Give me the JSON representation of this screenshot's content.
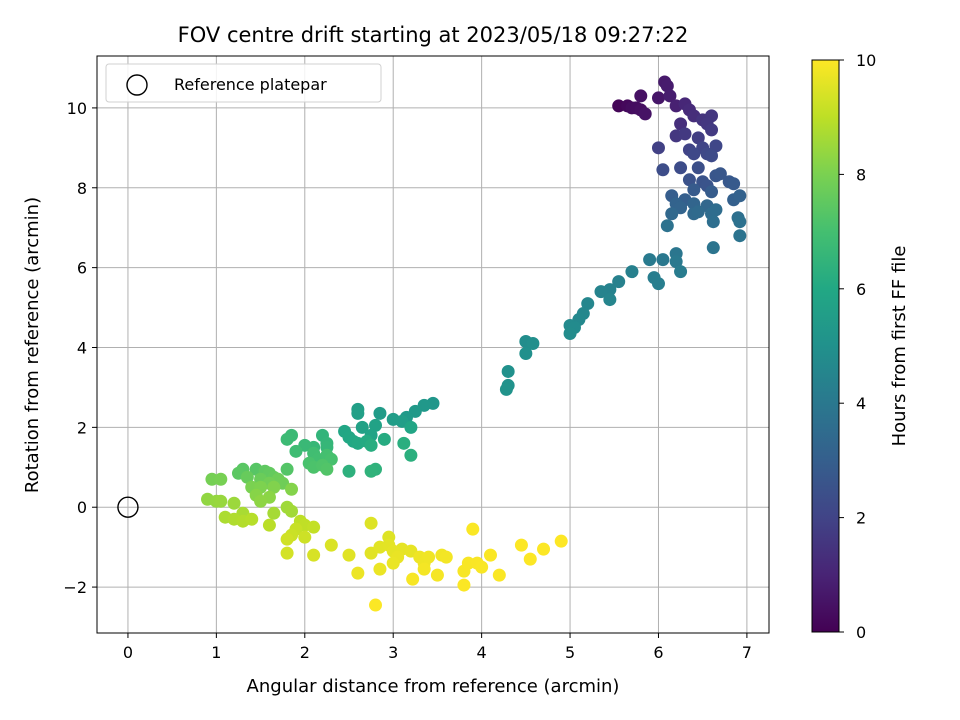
{
  "chart_data": {
    "type": "scatter",
    "title": "FOV centre drift starting at 2023/05/18 09:27:22",
    "xlabel": "Angular distance from reference (arcmin)",
    "ylabel": "Rotation from reference (arcmin)",
    "xlim": [
      -0.35,
      7.25
    ],
    "ylim": [
      -3.15,
      11.3
    ],
    "xticks": [
      0,
      1,
      2,
      3,
      4,
      5,
      6,
      7
    ],
    "yticks": [
      -2,
      0,
      2,
      4,
      6,
      8,
      10
    ],
    "xtick_labels": [
      "0",
      "1",
      "2",
      "3",
      "4",
      "5",
      "6",
      "7"
    ],
    "ytick_labels": [
      "−2",
      "0",
      "2",
      "4",
      "6",
      "8",
      "10"
    ],
    "grid": true,
    "legend_position": "top-left",
    "legend": [
      {
        "label": "Reference platepar",
        "marker": "open-circle"
      }
    ],
    "reference_point": {
      "x": 0,
      "y": 0
    },
    "colorbar": {
      "label": "Hours from first FF file",
      "colormap": "viridis",
      "range": [
        0,
        10
      ],
      "ticks": [
        0,
        2,
        4,
        6,
        8,
        10
      ],
      "tick_labels": [
        "0",
        "2",
        "4",
        "6",
        "8",
        "10"
      ]
    },
    "points": [
      {
        "x": 5.55,
        "y": 10.05,
        "c": 0.1
      },
      {
        "x": 5.65,
        "y": 10.05,
        "c": 0.2
      },
      {
        "x": 5.7,
        "y": 10.0,
        "c": 0.3
      },
      {
        "x": 5.75,
        "y": 10.0,
        "c": 0.35
      },
      {
        "x": 5.8,
        "y": 9.95,
        "c": 0.4
      },
      {
        "x": 5.85,
        "y": 9.85,
        "c": 0.5
      },
      {
        "x": 5.8,
        "y": 10.3,
        "c": 0.45
      },
      {
        "x": 6.0,
        "y": 10.25,
        "c": 0.6
      },
      {
        "x": 6.07,
        "y": 10.65,
        "c": 0.7
      },
      {
        "x": 6.1,
        "y": 10.55,
        "c": 0.75
      },
      {
        "x": 6.13,
        "y": 10.3,
        "c": 0.8
      },
      {
        "x": 6.2,
        "y": 10.05,
        "c": 0.9
      },
      {
        "x": 6.3,
        "y": 10.1,
        "c": 1.1
      },
      {
        "x": 6.35,
        "y": 9.95,
        "c": 1.2
      },
      {
        "x": 6.4,
        "y": 9.8,
        "c": 1.3
      },
      {
        "x": 6.25,
        "y": 9.6,
        "c": 1.35
      },
      {
        "x": 6.5,
        "y": 9.7,
        "c": 1.5
      },
      {
        "x": 6.6,
        "y": 9.8,
        "c": 1.55
      },
      {
        "x": 6.55,
        "y": 9.6,
        "c": 1.6
      },
      {
        "x": 6.6,
        "y": 9.45,
        "c": 1.7
      },
      {
        "x": 6.2,
        "y": 9.3,
        "c": 1.6
      },
      {
        "x": 6.3,
        "y": 9.35,
        "c": 1.65
      },
      {
        "x": 6.45,
        "y": 9.25,
        "c": 1.8
      },
      {
        "x": 6.0,
        "y": 9.0,
        "c": 1.9
      },
      {
        "x": 6.35,
        "y": 8.95,
        "c": 2.0
      },
      {
        "x": 6.5,
        "y": 9.0,
        "c": 2.05
      },
      {
        "x": 6.65,
        "y": 9.05,
        "c": 2.1
      },
      {
        "x": 6.4,
        "y": 8.85,
        "c": 2.15
      },
      {
        "x": 6.55,
        "y": 8.85,
        "c": 2.2
      },
      {
        "x": 6.6,
        "y": 8.8,
        "c": 2.25
      },
      {
        "x": 6.25,
        "y": 8.5,
        "c": 2.3
      },
      {
        "x": 6.05,
        "y": 8.45,
        "c": 2.35
      },
      {
        "x": 6.45,
        "y": 8.5,
        "c": 2.4
      },
      {
        "x": 6.35,
        "y": 8.2,
        "c": 2.5
      },
      {
        "x": 6.5,
        "y": 8.15,
        "c": 2.55
      },
      {
        "x": 6.55,
        "y": 8.05,
        "c": 2.6
      },
      {
        "x": 6.65,
        "y": 8.3,
        "c": 2.65
      },
      {
        "x": 6.7,
        "y": 8.35,
        "c": 2.7
      },
      {
        "x": 6.8,
        "y": 8.15,
        "c": 2.75
      },
      {
        "x": 6.85,
        "y": 8.1,
        "c": 2.8
      },
      {
        "x": 6.4,
        "y": 7.95,
        "c": 2.85
      },
      {
        "x": 6.6,
        "y": 7.9,
        "c": 2.9
      },
      {
        "x": 6.15,
        "y": 7.8,
        "c": 2.95
      },
      {
        "x": 6.3,
        "y": 7.7,
        "c": 3.0
      },
      {
        "x": 6.85,
        "y": 7.7,
        "c": 3.05
      },
      {
        "x": 6.92,
        "y": 7.8,
        "c": 3.1
      },
      {
        "x": 6.2,
        "y": 7.6,
        "c": 3.15
      },
      {
        "x": 6.25,
        "y": 7.5,
        "c": 3.2
      },
      {
        "x": 6.4,
        "y": 7.6,
        "c": 3.25
      },
      {
        "x": 6.55,
        "y": 7.55,
        "c": 3.3
      },
      {
        "x": 6.15,
        "y": 7.35,
        "c": 3.35
      },
      {
        "x": 6.4,
        "y": 7.35,
        "c": 3.4
      },
      {
        "x": 6.45,
        "y": 7.4,
        "c": 3.45
      },
      {
        "x": 6.6,
        "y": 7.35,
        "c": 3.5
      },
      {
        "x": 6.65,
        "y": 7.45,
        "c": 3.55
      },
      {
        "x": 6.62,
        "y": 7.15,
        "c": 3.6
      },
      {
        "x": 6.9,
        "y": 7.25,
        "c": 3.65
      },
      {
        "x": 6.92,
        "y": 7.15,
        "c": 3.7
      },
      {
        "x": 6.1,
        "y": 7.05,
        "c": 3.75
      },
      {
        "x": 6.92,
        "y": 6.8,
        "c": 3.8
      },
      {
        "x": 6.62,
        "y": 6.5,
        "c": 3.85
      },
      {
        "x": 6.2,
        "y": 6.35,
        "c": 3.9
      },
      {
        "x": 6.05,
        "y": 6.2,
        "c": 4.0
      },
      {
        "x": 6.2,
        "y": 6.15,
        "c": 4.05
      },
      {
        "x": 5.9,
        "y": 6.2,
        "c": 4.1
      },
      {
        "x": 6.25,
        "y": 5.9,
        "c": 4.15
      },
      {
        "x": 5.95,
        "y": 5.75,
        "c": 4.2
      },
      {
        "x": 6.0,
        "y": 5.6,
        "c": 4.25
      },
      {
        "x": 5.7,
        "y": 5.9,
        "c": 4.3
      },
      {
        "x": 5.55,
        "y": 5.65,
        "c": 4.35
      },
      {
        "x": 5.45,
        "y": 5.45,
        "c": 4.4
      },
      {
        "x": 5.35,
        "y": 5.4,
        "c": 4.45
      },
      {
        "x": 5.45,
        "y": 5.2,
        "c": 4.5
      },
      {
        "x": 5.2,
        "y": 5.1,
        "c": 4.55
      },
      {
        "x": 5.15,
        "y": 4.85,
        "c": 4.6
      },
      {
        "x": 5.1,
        "y": 4.7,
        "c": 4.65
      },
      {
        "x": 5.0,
        "y": 4.55,
        "c": 4.7
      },
      {
        "x": 5.05,
        "y": 4.5,
        "c": 4.75
      },
      {
        "x": 5.0,
        "y": 4.35,
        "c": 4.8
      },
      {
        "x": 4.5,
        "y": 4.15,
        "c": 4.85
      },
      {
        "x": 4.58,
        "y": 4.1,
        "c": 4.9
      },
      {
        "x": 4.5,
        "y": 3.85,
        "c": 4.95
      },
      {
        "x": 4.3,
        "y": 3.4,
        "c": 5.0
      },
      {
        "x": 4.3,
        "y": 3.05,
        "c": 5.05
      },
      {
        "x": 4.28,
        "y": 2.95,
        "c": 5.1
      },
      {
        "x": 3.45,
        "y": 2.6,
        "c": 5.2
      },
      {
        "x": 3.35,
        "y": 2.55,
        "c": 5.3
      },
      {
        "x": 3.25,
        "y": 2.4,
        "c": 5.35
      },
      {
        "x": 3.15,
        "y": 2.25,
        "c": 5.4
      },
      {
        "x": 2.85,
        "y": 2.35,
        "c": 5.45
      },
      {
        "x": 3.0,
        "y": 2.2,
        "c": 5.5
      },
      {
        "x": 3.1,
        "y": 2.15,
        "c": 5.55
      },
      {
        "x": 2.6,
        "y": 2.45,
        "c": 5.6
      },
      {
        "x": 2.6,
        "y": 2.35,
        "c": 5.65
      },
      {
        "x": 2.65,
        "y": 2.0,
        "c": 5.7
      },
      {
        "x": 2.8,
        "y": 2.05,
        "c": 5.75
      },
      {
        "x": 2.75,
        "y": 1.8,
        "c": 5.8
      },
      {
        "x": 3.2,
        "y": 2.0,
        "c": 5.85
      },
      {
        "x": 2.45,
        "y": 1.9,
        "c": 5.9
      },
      {
        "x": 2.5,
        "y": 1.75,
        "c": 5.95
      },
      {
        "x": 2.55,
        "y": 1.65,
        "c": 6.0
      },
      {
        "x": 2.6,
        "y": 1.6,
        "c": 6.05
      },
      {
        "x": 2.7,
        "y": 1.65,
        "c": 6.1
      },
      {
        "x": 2.9,
        "y": 1.7,
        "c": 6.15
      },
      {
        "x": 2.75,
        "y": 1.55,
        "c": 6.2
      },
      {
        "x": 3.12,
        "y": 1.6,
        "c": 6.25
      },
      {
        "x": 3.2,
        "y": 1.3,
        "c": 6.3
      },
      {
        "x": 2.5,
        "y": 0.9,
        "c": 6.35
      },
      {
        "x": 2.8,
        "y": 0.95,
        "c": 6.4
      },
      {
        "x": 2.75,
        "y": 0.9,
        "c": 6.45
      },
      {
        "x": 2.2,
        "y": 1.8,
        "c": 6.5
      },
      {
        "x": 2.25,
        "y": 1.6,
        "c": 6.55
      },
      {
        "x": 2.25,
        "y": 1.5,
        "c": 6.6
      },
      {
        "x": 2.1,
        "y": 1.5,
        "c": 6.65
      },
      {
        "x": 2.0,
        "y": 1.55,
        "c": 6.7
      },
      {
        "x": 1.85,
        "y": 1.8,
        "c": 6.75
      },
      {
        "x": 1.8,
        "y": 1.7,
        "c": 6.8
      },
      {
        "x": 1.9,
        "y": 1.4,
        "c": 6.85
      },
      {
        "x": 2.1,
        "y": 1.35,
        "c": 6.9
      },
      {
        "x": 2.15,
        "y": 1.2,
        "c": 6.95
      },
      {
        "x": 2.25,
        "y": 1.3,
        "c": 7.0
      },
      {
        "x": 2.3,
        "y": 1.2,
        "c": 7.05
      },
      {
        "x": 2.05,
        "y": 1.1,
        "c": 7.1
      },
      {
        "x": 2.1,
        "y": 1.0,
        "c": 7.15
      },
      {
        "x": 2.2,
        "y": 1.05,
        "c": 7.2
      },
      {
        "x": 2.25,
        "y": 0.95,
        "c": 7.25
      },
      {
        "x": 1.8,
        "y": 0.95,
        "c": 7.3
      },
      {
        "x": 1.45,
        "y": 0.95,
        "c": 7.35
      },
      {
        "x": 1.3,
        "y": 0.95,
        "c": 7.4
      },
      {
        "x": 1.25,
        "y": 0.85,
        "c": 7.45
      },
      {
        "x": 1.55,
        "y": 0.9,
        "c": 7.5
      },
      {
        "x": 1.6,
        "y": 0.85,
        "c": 7.55
      },
      {
        "x": 1.65,
        "y": 0.75,
        "c": 7.6
      },
      {
        "x": 1.35,
        "y": 0.75,
        "c": 7.65
      },
      {
        "x": 1.5,
        "y": 0.7,
        "c": 7.7
      },
      {
        "x": 1.7,
        "y": 0.7,
        "c": 7.75
      },
      {
        "x": 1.75,
        "y": 0.6,
        "c": 7.8
      },
      {
        "x": 1.6,
        "y": 0.6,
        "c": 7.85
      },
      {
        "x": 0.95,
        "y": 0.7,
        "c": 7.9
      },
      {
        "x": 1.05,
        "y": 0.7,
        "c": 7.95
      },
      {
        "x": 1.4,
        "y": 0.5,
        "c": 8.0
      },
      {
        "x": 1.5,
        "y": 0.5,
        "c": 8.05
      },
      {
        "x": 1.65,
        "y": 0.5,
        "c": 8.1
      },
      {
        "x": 1.85,
        "y": 0.45,
        "c": 8.15
      },
      {
        "x": 1.45,
        "y": 0.3,
        "c": 8.2
      },
      {
        "x": 1.6,
        "y": 0.25,
        "c": 8.25
      },
      {
        "x": 1.5,
        "y": 0.15,
        "c": 8.3
      },
      {
        "x": 0.9,
        "y": 0.2,
        "c": 8.35
      },
      {
        "x": 1.0,
        "y": 0.15,
        "c": 8.4
      },
      {
        "x": 1.05,
        "y": 0.15,
        "c": 8.45
      },
      {
        "x": 1.2,
        "y": 0.1,
        "c": 8.5
      },
      {
        "x": 1.8,
        "y": 0.0,
        "c": 8.55
      },
      {
        "x": 1.85,
        "y": -0.1,
        "c": 8.6
      },
      {
        "x": 1.65,
        "y": -0.15,
        "c": 8.65
      },
      {
        "x": 1.3,
        "y": -0.15,
        "c": 8.7
      },
      {
        "x": 1.1,
        "y": -0.25,
        "c": 8.75
      },
      {
        "x": 1.2,
        "y": -0.3,
        "c": 8.8
      },
      {
        "x": 1.3,
        "y": -0.35,
        "c": 8.85
      },
      {
        "x": 1.4,
        "y": -0.3,
        "c": 8.9
      },
      {
        "x": 1.6,
        "y": -0.45,
        "c": 8.95
      },
      {
        "x": 1.95,
        "y": -0.35,
        "c": 9.0
      },
      {
        "x": 2.0,
        "y": -0.45,
        "c": 9.05
      },
      {
        "x": 2.1,
        "y": -0.5,
        "c": 9.1
      },
      {
        "x": 1.9,
        "y": -0.55,
        "c": 9.15
      },
      {
        "x": 1.85,
        "y": -0.7,
        "c": 9.2
      },
      {
        "x": 2.0,
        "y": -0.75,
        "c": 9.25
      },
      {
        "x": 1.8,
        "y": -0.8,
        "c": 9.3
      },
      {
        "x": 1.8,
        "y": -1.15,
        "c": 9.35
      },
      {
        "x": 2.1,
        "y": -1.2,
        "c": 9.4
      },
      {
        "x": 2.3,
        "y": -0.95,
        "c": 9.45
      },
      {
        "x": 2.75,
        "y": -0.4,
        "c": 9.5
      },
      {
        "x": 2.95,
        "y": -0.75,
        "c": 9.52
      },
      {
        "x": 2.5,
        "y": -1.2,
        "c": 9.54
      },
      {
        "x": 2.75,
        "y": -1.15,
        "c": 9.56
      },
      {
        "x": 2.85,
        "y": -1.0,
        "c": 9.58
      },
      {
        "x": 2.95,
        "y": -0.95,
        "c": 9.6
      },
      {
        "x": 3.0,
        "y": -1.1,
        "c": 9.62
      },
      {
        "x": 3.1,
        "y": -1.05,
        "c": 9.64
      },
      {
        "x": 3.2,
        "y": -1.1,
        "c": 9.66
      },
      {
        "x": 3.05,
        "y": -1.25,
        "c": 9.68
      },
      {
        "x": 3.0,
        "y": -1.4,
        "c": 9.7
      },
      {
        "x": 2.85,
        "y": -1.55,
        "c": 9.72
      },
      {
        "x": 2.6,
        "y": -1.65,
        "c": 9.74
      },
      {
        "x": 3.3,
        "y": -1.25,
        "c": 9.76
      },
      {
        "x": 3.35,
        "y": -1.4,
        "c": 9.78
      },
      {
        "x": 3.4,
        "y": -1.25,
        "c": 9.8
      },
      {
        "x": 3.55,
        "y": -1.2,
        "c": 9.82
      },
      {
        "x": 3.6,
        "y": -1.25,
        "c": 9.84
      },
      {
        "x": 3.35,
        "y": -1.55,
        "c": 9.86
      },
      {
        "x": 3.5,
        "y": -1.7,
        "c": 9.88
      },
      {
        "x": 3.22,
        "y": -1.8,
        "c": 9.9
      },
      {
        "x": 3.8,
        "y": -1.6,
        "c": 9.91
      },
      {
        "x": 3.85,
        "y": -1.4,
        "c": 9.92
      },
      {
        "x": 3.95,
        "y": -1.4,
        "c": 9.93
      },
      {
        "x": 4.0,
        "y": -1.5,
        "c": 9.94
      },
      {
        "x": 4.1,
        "y": -1.2,
        "c": 9.95
      },
      {
        "x": 3.9,
        "y": -0.55,
        "c": 9.96
      },
      {
        "x": 4.2,
        "y": -1.7,
        "c": 9.96
      },
      {
        "x": 3.8,
        "y": -1.95,
        "c": 9.97
      },
      {
        "x": 2.8,
        "y": -2.45,
        "c": 9.97
      },
      {
        "x": 4.45,
        "y": -0.95,
        "c": 9.98
      },
      {
        "x": 4.55,
        "y": -1.3,
        "c": 9.98
      },
      {
        "x": 4.7,
        "y": -1.05,
        "c": 9.99
      },
      {
        "x": 4.9,
        "y": -0.85,
        "c": 10.0
      }
    ]
  }
}
